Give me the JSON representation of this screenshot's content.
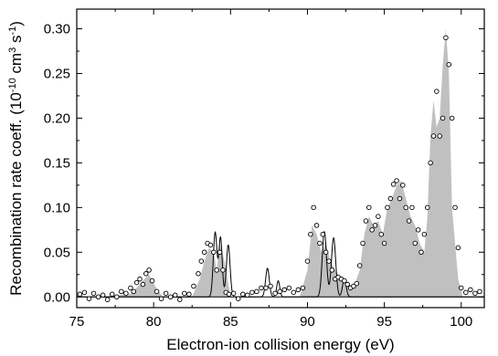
{
  "chart_data": {
    "type": "area",
    "xlabel": "Electron-ion collision energy (eV)",
    "ylabel": "Recombination rate coeff. (10",
    "ylabel_parts": {
      "base": "Recombination rate coeff. (10",
      "exp1": "-10",
      "mid": " cm",
      "exp2": "3",
      "mid2": " s",
      "exp3": "-1",
      "end": ")"
    },
    "xlim": [
      75,
      101.5
    ],
    "ylim": [
      -0.012,
      0.322
    ],
    "x_ticks": [
      75,
      80,
      85,
      90,
      95,
      100
    ],
    "x_tick_labels": [
      "75",
      "80",
      "85",
      "90",
      "95",
      "100"
    ],
    "y_ticks": [
      0.0,
      0.05,
      0.1,
      0.15,
      0.2,
      0.25,
      0.3
    ],
    "y_tick_labels": [
      "0.00",
      "0.05",
      "0.10",
      "0.15",
      "0.20",
      "0.25",
      "0.30"
    ],
    "grid": false,
    "colors": {
      "fill": "#c0c0c0",
      "line": "#000000",
      "marker_fill": "#ffffff",
      "marker_edge": "#000000"
    },
    "series": [
      {
        "kind": "filled-area",
        "x": [
          75,
          77,
          78.5,
          79.0,
          79.4,
          79.7,
          80.1,
          80.6,
          82.5,
          83.0,
          83.3,
          83.6,
          83.9,
          84.1,
          84.3,
          84.6,
          85.0,
          86.5,
          89.5,
          90.0,
          90.3,
          90.6,
          90.9,
          91.2,
          91.5,
          91.8,
          92.2,
          92.6,
          93.0,
          93.4,
          93.7,
          94.0,
          94.3,
          94.6,
          94.9,
          95.2,
          95.5,
          95.8,
          96.1,
          96.4,
          96.7,
          97.0,
          97.3,
          97.6,
          97.8,
          98.0,
          98.2,
          98.4,
          98.6,
          98.8,
          99.0,
          99.2,
          99.4,
          99.6,
          99.8,
          100.1,
          101.5
        ],
        "y": [
          0.0,
          0.0,
          0.004,
          0.012,
          0.02,
          0.025,
          0.012,
          0.0,
          0.0,
          0.02,
          0.04,
          0.055,
          0.05,
          0.03,
          0.06,
          0.04,
          0.0,
          0.0,
          0.0,
          0.03,
          0.08,
          0.07,
          0.05,
          0.06,
          0.04,
          0.03,
          0.02,
          0.015,
          0.01,
          0.03,
          0.07,
          0.09,
          0.08,
          0.085,
          0.07,
          0.1,
          0.11,
          0.125,
          0.13,
          0.11,
          0.09,
          0.08,
          0.06,
          0.05,
          0.09,
          0.18,
          0.22,
          0.19,
          0.2,
          0.26,
          0.3,
          0.25,
          0.1,
          0.06,
          0.02,
          0.0,
          0.0
        ]
      },
      {
        "kind": "theory-line",
        "peaks": [
          {
            "center": 84.0,
            "height": 0.072,
            "width": 0.12
          },
          {
            "center": 84.35,
            "height": 0.066,
            "width": 0.11
          },
          {
            "center": 84.85,
            "height": 0.058,
            "width": 0.12
          },
          {
            "center": 87.4,
            "height": 0.032,
            "width": 0.12
          },
          {
            "center": 88.1,
            "height": 0.018,
            "width": 0.1
          },
          {
            "center": 91.1,
            "height": 0.073,
            "width": 0.14
          },
          {
            "center": 91.7,
            "height": 0.066,
            "width": 0.14
          },
          {
            "center": 92.4,
            "height": 0.02,
            "width": 0.12
          }
        ]
      },
      {
        "kind": "markers",
        "x": [
          75.2,
          75.5,
          75.8,
          76.1,
          76.4,
          76.7,
          77.0,
          77.3,
          77.6,
          77.9,
          78.2,
          78.5,
          78.7,
          78.9,
          79.1,
          79.3,
          79.5,
          79.7,
          79.9,
          80.2,
          80.5,
          80.8,
          81.1,
          81.4,
          81.7,
          82.0,
          82.3,
          82.6,
          82.9,
          83.1,
          83.3,
          83.5,
          83.7,
          83.9,
          84.1,
          84.3,
          84.5,
          84.7,
          84.9,
          85.2,
          85.5,
          85.8,
          86.1,
          86.4,
          86.7,
          87.0,
          87.3,
          87.6,
          87.9,
          88.2,
          88.5,
          88.8,
          89.1,
          89.4,
          89.7,
          90.0,
          90.2,
          90.4,
          90.6,
          90.8,
          91.0,
          91.2,
          91.4,
          91.6,
          91.8,
          92.0,
          92.2,
          92.4,
          92.6,
          92.8,
          93.0,
          93.2,
          93.4,
          93.6,
          93.8,
          94.0,
          94.2,
          94.4,
          94.6,
          94.8,
          95.0,
          95.2,
          95.4,
          95.6,
          95.8,
          96.0,
          96.2,
          96.4,
          96.6,
          96.8,
          97.0,
          97.2,
          97.4,
          97.6,
          97.8,
          98.0,
          98.2,
          98.4,
          98.6,
          98.8,
          99.0,
          99.2,
          99.4,
          99.6,
          99.8,
          100.0,
          100.3,
          100.6,
          100.9,
          101.2
        ],
        "y": [
          0.003,
          0.005,
          -0.002,
          0.004,
          0.0,
          0.002,
          -0.003,
          0.003,
          0.0,
          0.006,
          0.004,
          0.01,
          0.006,
          0.016,
          0.02,
          0.014,
          0.026,
          0.03,
          0.018,
          0.006,
          -0.002,
          0.004,
          0.0,
          0.002,
          -0.003,
          0.004,
          0.003,
          0.012,
          0.026,
          0.04,
          0.05,
          0.06,
          0.058,
          0.05,
          0.03,
          0.05,
          0.03,
          0.005,
          0.003,
          0.004,
          -0.002,
          0.003,
          0.002,
          0.005,
          0.006,
          0.01,
          0.01,
          0.012,
          0.004,
          0.006,
          0.008,
          0.01,
          0.005,
          0.008,
          0.01,
          0.04,
          0.07,
          0.1,
          0.08,
          0.06,
          0.07,
          0.05,
          0.04,
          0.03,
          0.02,
          0.022,
          0.02,
          0.018,
          0.014,
          0.01,
          0.012,
          0.015,
          0.035,
          0.06,
          0.085,
          0.1,
          0.075,
          0.08,
          0.09,
          0.07,
          0.06,
          0.1,
          0.11,
          0.126,
          0.13,
          0.11,
          0.125,
          0.1,
          0.085,
          0.1,
          0.06,
          0.075,
          0.05,
          0.07,
          0.1,
          0.15,
          0.18,
          0.23,
          0.18,
          0.2,
          0.29,
          0.26,
          0.2,
          0.1,
          0.055,
          0.01,
          0.005,
          0.008,
          0.004,
          0.006
        ]
      }
    ]
  }
}
